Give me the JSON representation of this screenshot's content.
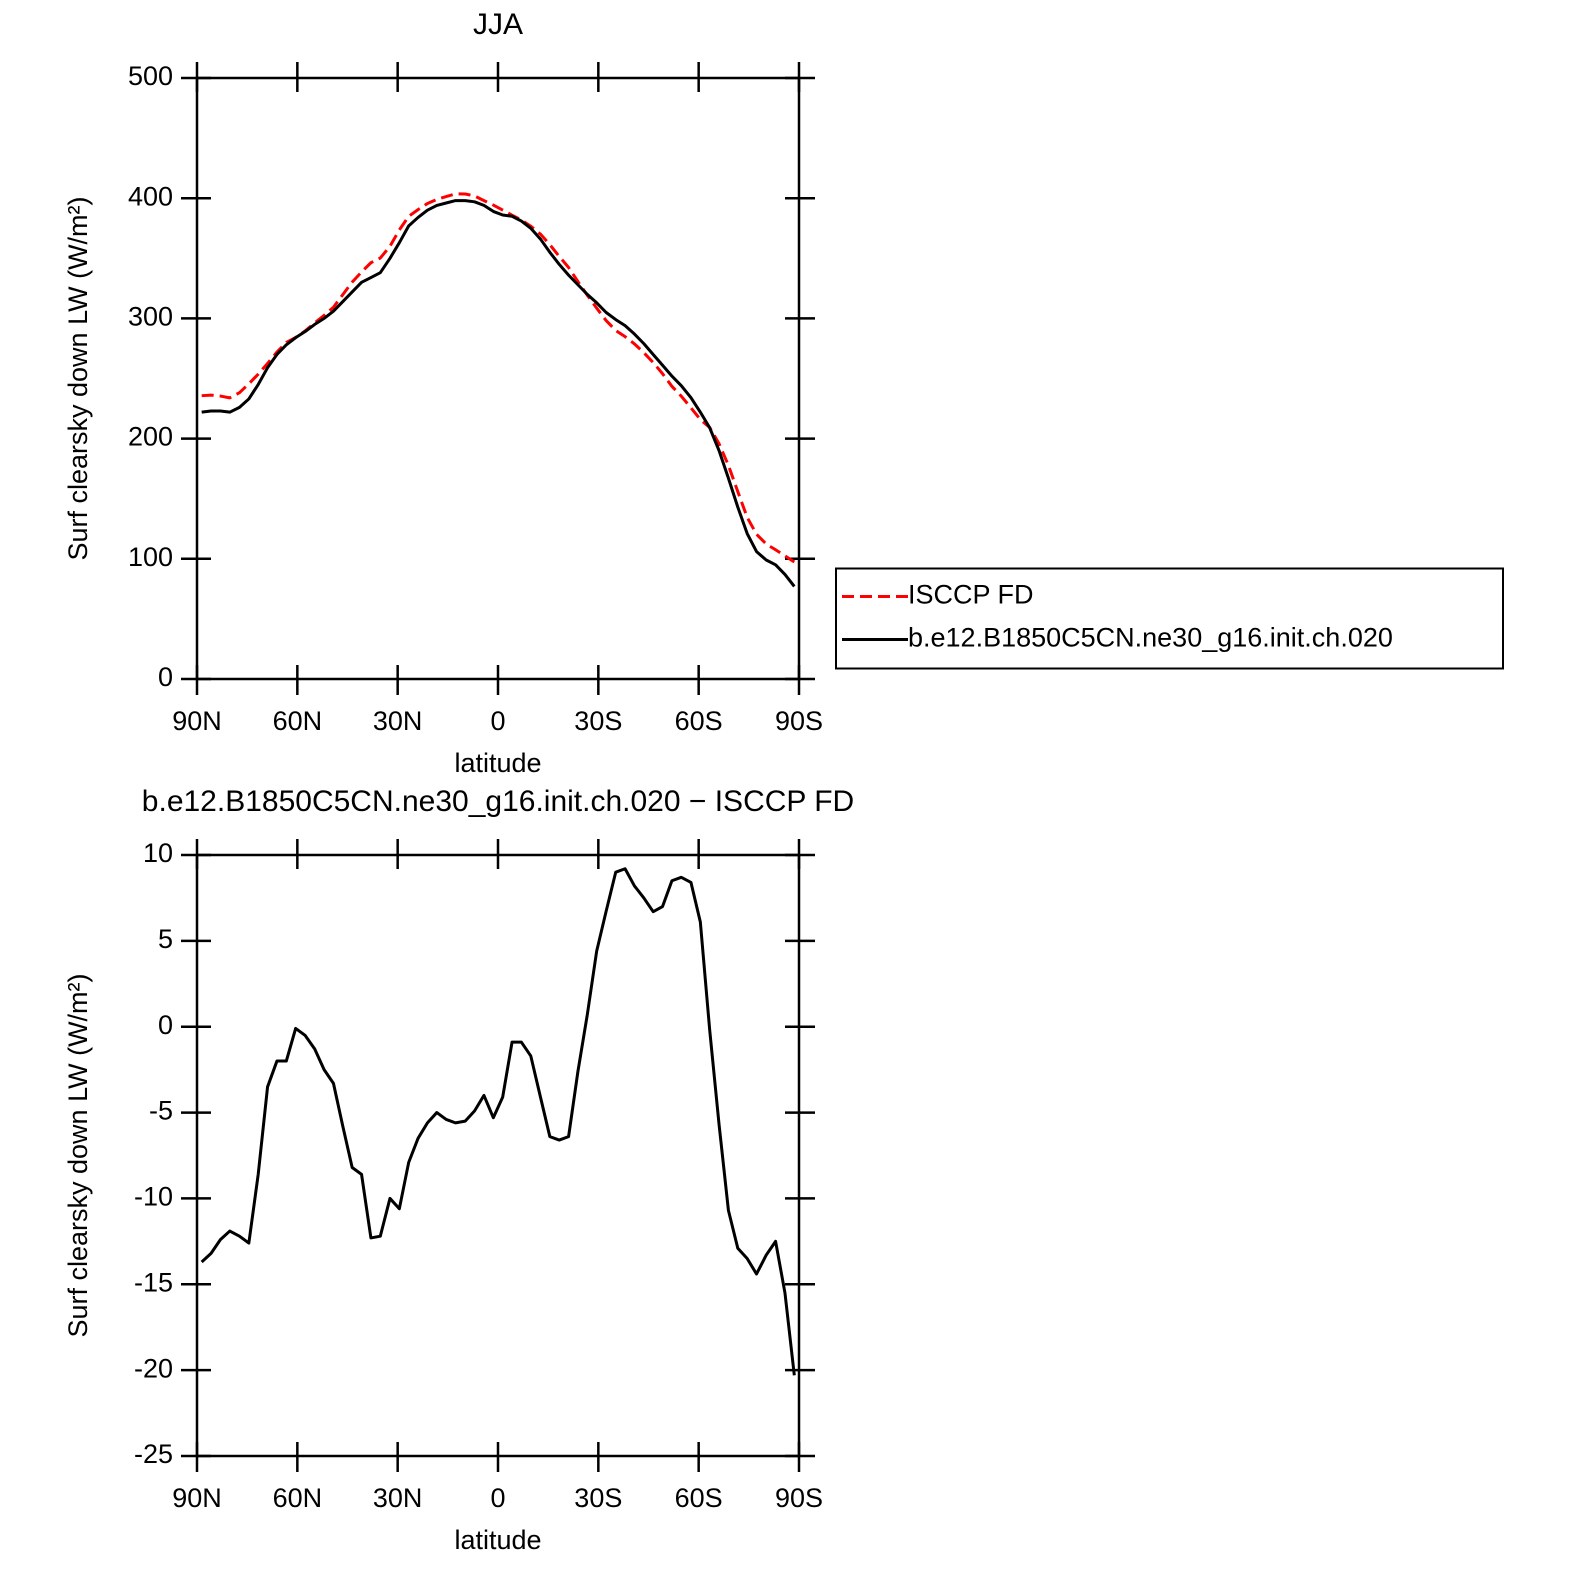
{
  "chart_data": [
    {
      "type": "line",
      "title": "JJA",
      "xlabel": "latitude",
      "ylabel": "Surf clearsky down LW (W/m²)",
      "x": [
        88.6,
        85.8,
        83.0,
        80.2,
        77.3,
        74.5,
        71.7,
        68.9,
        66.1,
        63.3,
        60.5,
        57.7,
        54.8,
        52.0,
        49.2,
        46.4,
        43.6,
        40.8,
        38.0,
        35.2,
        32.3,
        29.5,
        26.7,
        23.9,
        21.1,
        18.3,
        15.5,
        12.7,
        9.8,
        7.0,
        4.2,
        1.4,
        -1.4,
        -4.2,
        -7.0,
        -9.8,
        -12.7,
        -15.5,
        -18.3,
        -21.1,
        -23.9,
        -26.7,
        -29.5,
        -32.3,
        -35.2,
        -38.0,
        -40.8,
        -43.6,
        -46.4,
        -49.2,
        -52.0,
        -54.8,
        -57.7,
        -60.5,
        -63.3,
        -66.1,
        -68.9,
        -71.7,
        -74.5,
        -77.3,
        -80.2,
        -83.0,
        -85.8,
        -88.6
      ],
      "series": [
        {
          "name": "ISCCP FD",
          "color": "#ff0000",
          "style": "dashed",
          "values": [
            235.7,
            236.2,
            235.4,
            233.9,
            238.2,
            245.6,
            253.6,
            262.5,
            272,
            280,
            284.1,
            289.5,
            296.3,
            302.5,
            309.3,
            319.8,
            330.2,
            338.6,
            346.3,
            350.2,
            360,
            373.6,
            384.9,
            390.5,
            395.6,
            399,
            401.4,
            403.6,
            403.5,
            401.9,
            398,
            394.3,
            390.1,
            385.9,
            381.9,
            376.7,
            370.1,
            361.4,
            351.6,
            342.4,
            330.6,
            319.3,
            308.6,
            298.3,
            290,
            284.8,
            278.8,
            271.5,
            263.3,
            254,
            243.5,
            235.3,
            225.6,
            215.9,
            209.2,
            195.7,
            177.7,
            155.9,
            134.5,
            120.4,
            112.3,
            107.5,
            102.5,
            97.3
          ]
        },
        {
          "name": "b.e12.B1850C5CN.ne30_g16.init.ch.020",
          "color": "#000000",
          "style": "solid",
          "values": [
            222,
            223,
            223,
            222,
            226,
            233,
            245,
            259,
            270,
            278,
            284,
            289,
            295,
            300,
            306,
            314,
            322,
            330,
            334,
            338,
            350,
            363,
            377,
            384,
            390,
            394,
            396,
            398,
            398,
            397,
            394,
            389,
            386,
            385,
            381,
            375,
            366,
            355,
            345,
            336,
            328,
            320,
            313,
            305,
            299,
            294,
            287,
            279,
            270,
            261,
            252,
            244,
            234,
            222,
            209,
            190,
            167,
            143,
            121,
            106,
            99,
            95,
            87,
            77
          ]
        }
      ],
      "xlim": [
        90,
        -90
      ],
      "xticks": [
        {
          "value": 90,
          "label": "90N"
        },
        {
          "value": 60,
          "label": "60N"
        },
        {
          "value": 30,
          "label": "30N"
        },
        0,
        {
          "value": -30,
          "label": "30S"
        },
        {
          "value": -60,
          "label": "60S"
        },
        {
          "value": -90,
          "label": "90S"
        }
      ],
      "ylim": [
        0,
        500
      ],
      "yticks": [
        0,
        100,
        200,
        300,
        400,
        500
      ],
      "legend": "right"
    },
    {
      "type": "line",
      "title": "b.e12.B1850C5CN.ne30_g16.init.ch.020 − ISCCP FD",
      "xlabel": "latitude",
      "ylabel": "Surf clearsky down LW (W/m²)",
      "x": [
        88.6,
        85.8,
        83.0,
        80.2,
        77.3,
        74.5,
        71.7,
        68.9,
        66.1,
        63.3,
        60.5,
        57.7,
        54.8,
        52.0,
        49.2,
        46.4,
        43.6,
        40.8,
        38.0,
        35.2,
        32.3,
        29.5,
        26.7,
        23.9,
        21.1,
        18.3,
        15.5,
        12.7,
        9.8,
        7.0,
        4.2,
        1.4,
        -1.4,
        -4.2,
        -7.0,
        -9.8,
        -12.7,
        -15.5,
        -18.3,
        -21.1,
        -23.9,
        -26.7,
        -29.5,
        -32.3,
        -35.2,
        -38.0,
        -40.8,
        -43.6,
        -46.4,
        -49.2,
        -52.0,
        -54.8,
        -57.7,
        -60.5,
        -63.3,
        -66.1,
        -68.9,
        -71.7,
        -74.5,
        -77.3,
        -80.2,
        -83.0,
        -85.8,
        -88.6
      ],
      "color": "#000000",
      "values": [
        -13.7,
        -13.2,
        -12.4,
        -11.9,
        -12.2,
        -12.6,
        -8.6,
        -3.5,
        -2.0,
        -2.0,
        -0.1,
        -0.5,
        -1.3,
        -2.5,
        -3.3,
        -5.8,
        -8.2,
        -8.6,
        -12.3,
        -12.2,
        -10.0,
        -10.6,
        -7.9,
        -6.5,
        -5.6,
        -5.0,
        -5.4,
        -5.6,
        -5.5,
        -4.9,
        -4.0,
        -5.3,
        -4.1,
        -0.9,
        -0.9,
        -1.7,
        -4.1,
        -6.4,
        -6.6,
        -6.4,
        -2.6,
        0.7,
        4.4,
        6.7,
        9.0,
        9.2,
        8.2,
        7.5,
        6.7,
        7.0,
        8.5,
        8.7,
        8.4,
        6.1,
        -0.2,
        -5.7,
        -10.7,
        -12.9,
        -13.5,
        -14.4,
        -13.3,
        -12.5,
        -15.5,
        -20.3
      ],
      "xlim": [
        90,
        -90
      ],
      "xticks": [
        {
          "value": 90,
          "label": "90N"
        },
        {
          "value": 60,
          "label": "60N"
        },
        {
          "value": 30,
          "label": "30N"
        },
        0,
        {
          "value": -30,
          "label": "30S"
        },
        {
          "value": -60,
          "label": "60S"
        },
        {
          "value": -90,
          "label": "90S"
        }
      ],
      "ylim": [
        -25,
        10
      ],
      "yticks": [
        -25,
        -20,
        -15,
        -10,
        -5,
        0,
        5,
        10
      ]
    }
  ]
}
